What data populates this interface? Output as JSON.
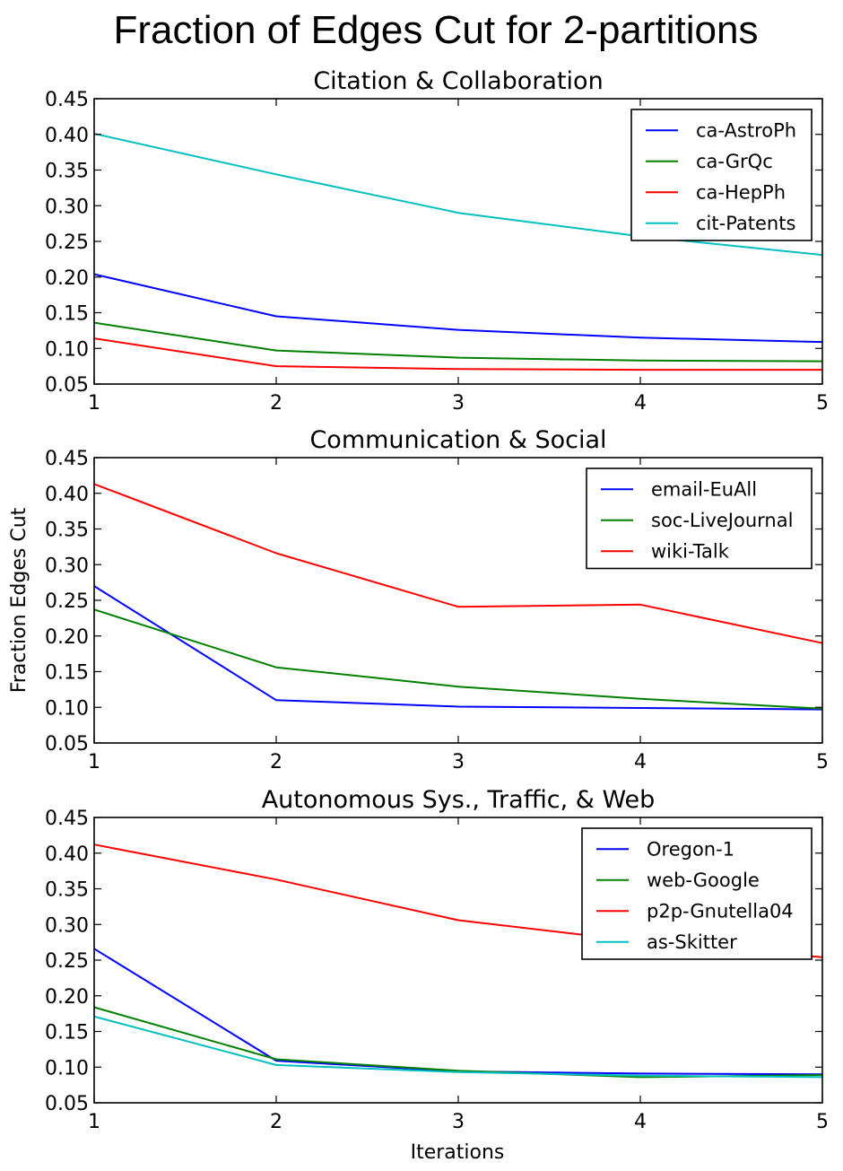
{
  "figure": {
    "title": "Fraction of Edges Cut for 2-partitions",
    "xlabel": "Iterations",
    "ylabel": "Fraction Edges Cut"
  },
  "chart_data": [
    {
      "type": "line",
      "title": "Citation & Collaboration",
      "x": [
        1,
        2,
        3,
        4,
        5
      ],
      "xlim": [
        1,
        5
      ],
      "ylim": [
        0.05,
        0.45
      ],
      "xticks": [
        "1",
        "2",
        "3",
        "4",
        "5"
      ],
      "yticks": [
        "0.05",
        "0.10",
        "0.15",
        "0.20",
        "0.25",
        "0.30",
        "0.35",
        "0.40",
        "0.45"
      ],
      "legend_position": "top-right",
      "series": [
        {
          "name": "ca-AstroPh",
          "color": "#0000ff",
          "values": [
            0.204,
            0.145,
            0.126,
            0.115,
            0.109
          ]
        },
        {
          "name": "ca-GrQc",
          "color": "#008000",
          "values": [
            0.136,
            0.097,
            0.087,
            0.083,
            0.082
          ]
        },
        {
          "name": "ca-HepPh",
          "color": "#ff0000",
          "values": [
            0.114,
            0.075,
            0.071,
            0.07,
            0.07
          ]
        },
        {
          "name": "cit-Patents",
          "color": "#00bfbf",
          "values": [
            0.401,
            0.344,
            0.29,
            0.257,
            0.231
          ]
        }
      ]
    },
    {
      "type": "line",
      "title": "Communication & Social",
      "x": [
        1,
        2,
        3,
        4,
        5
      ],
      "xlim": [
        1,
        5
      ],
      "ylim": [
        0.05,
        0.45
      ],
      "xticks": [
        "1",
        "2",
        "3",
        "4",
        "5"
      ],
      "yticks": [
        "0.05",
        "0.10",
        "0.15",
        "0.20",
        "0.25",
        "0.30",
        "0.35",
        "0.40",
        "0.45"
      ],
      "legend_position": "top-right",
      "series": [
        {
          "name": "email-EuAll",
          "color": "#0000ff",
          "values": [
            0.27,
            0.11,
            0.101,
            0.099,
            0.097
          ]
        },
        {
          "name": "soc-LiveJournal",
          "color": "#008000",
          "values": [
            0.237,
            0.156,
            0.129,
            0.112,
            0.098
          ]
        },
        {
          "name": "wiki-Talk",
          "color": "#ff0000",
          "values": [
            0.413,
            0.316,
            0.241,
            0.244,
            0.19
          ]
        }
      ]
    },
    {
      "type": "line",
      "title": "Autonomous Sys., Traffic, & Web",
      "x": [
        1,
        2,
        3,
        4,
        5
      ],
      "xlim": [
        1,
        5
      ],
      "ylim": [
        0.05,
        0.45
      ],
      "xticks": [
        "1",
        "2",
        "3",
        "4",
        "5"
      ],
      "yticks": [
        "0.05",
        "0.10",
        "0.15",
        "0.20",
        "0.25",
        "0.30",
        "0.35",
        "0.40",
        "0.45"
      ],
      "legend_position": "top-right",
      "series": [
        {
          "name": "Oregon-1",
          "color": "#0000ff",
          "values": [
            0.266,
            0.109,
            0.094,
            0.091,
            0.09
          ]
        },
        {
          "name": "web-Google",
          "color": "#008000",
          "values": [
            0.184,
            0.111,
            0.095,
            0.086,
            0.089
          ]
        },
        {
          "name": "p2p-Gnutella04",
          "color": "#ff0000",
          "values": [
            0.412,
            0.363,
            0.306,
            0.276,
            0.254
          ]
        },
        {
          "name": "as-Skitter",
          "color": "#00bfbf",
          "values": [
            0.171,
            0.103,
            0.093,
            0.088,
            0.086
          ]
        }
      ]
    }
  ]
}
